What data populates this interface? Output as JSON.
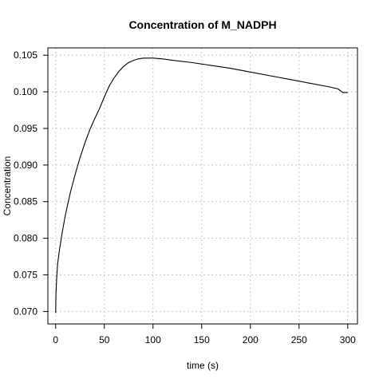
{
  "chart_data": {
    "type": "line",
    "title": "Concentration of M_NADPH",
    "xlabel": "time (s)",
    "ylabel": "Concentration",
    "xlim": [
      -8,
      310
    ],
    "ylim": [
      0.0683,
      0.106
    ],
    "x_ticks": [
      0,
      50,
      100,
      150,
      200,
      250,
      300
    ],
    "x_tick_labels": [
      "0",
      "50",
      "100",
      "150",
      "200",
      "250",
      "300"
    ],
    "y_ticks": [
      0.07,
      0.075,
      0.08,
      0.085,
      0.09,
      0.095,
      0.1,
      0.105
    ],
    "y_tick_labels": [
      "0.070",
      "0.075",
      "0.080",
      "0.085",
      "0.090",
      "0.095",
      "0.100",
      "0.105"
    ],
    "grid": true,
    "series": [
      {
        "x": [
          0,
          0.3,
          1,
          2,
          4,
          7,
          10,
          15,
          20,
          25,
          30,
          35,
          40,
          45,
          50,
          55,
          60,
          65,
          70,
          75,
          80,
          85,
          90,
          95,
          100,
          110,
          120,
          140,
          160,
          180,
          200,
          220,
          240,
          260,
          280,
          290,
          295,
          300
        ],
        "y": [
          0.0698,
          0.0723,
          0.0745,
          0.0765,
          0.0785,
          0.081,
          0.0832,
          0.0862,
          0.0887,
          0.091,
          0.093,
          0.0948,
          0.0963,
          0.0977,
          0.0993,
          0.1008,
          0.1019,
          0.1028,
          0.1035,
          0.104,
          0.1043,
          0.1045,
          0.1046,
          0.1046,
          0.1046,
          0.1045,
          0.1043,
          0.104,
          0.1036,
          0.1032,
          0.1027,
          0.1022,
          0.1017,
          0.1012,
          0.1007,
          0.1004,
          0.0999,
          0.0999
        ]
      }
    ]
  }
}
